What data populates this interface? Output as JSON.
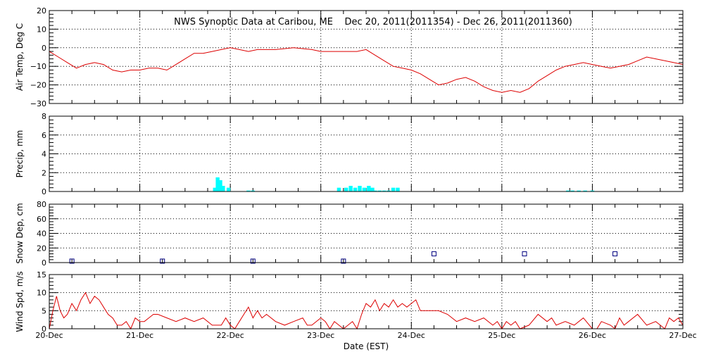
{
  "title": "NWS Synoptic Data at Caribou, ME    Dec 20, 2011(2011354) - Dec 26, 2011(2011360)",
  "xlabel": "Date (EST)",
  "x_ticks": [
    "20-Dec",
    "21-Dec",
    "22-Dec",
    "23-Dec",
    "24-Dec",
    "25-Dec",
    "26-Dec",
    "27-Dec"
  ],
  "colors": {
    "line": "#dd0000",
    "precip": "#00ffff",
    "snow": "#000080",
    "grid": "#000000"
  },
  "chart_data": [
    {
      "type": "line",
      "name": "air_temp",
      "ylabel": "Air Temp, Deg C",
      "ylim": [
        -30,
        20
      ],
      "yticks": [
        "20",
        "10",
        "0",
        "−10",
        "−20",
        "−30"
      ],
      "ytick_values": [
        20,
        10,
        0,
        -10,
        -20,
        -30
      ],
      "x_unit": "days since 20-Dec 00:00 EST",
      "x": [
        0,
        0.1,
        0.2,
        0.3,
        0.4,
        0.5,
        0.6,
        0.7,
        0.8,
        0.9,
        1.0,
        1.1,
        1.2,
        1.3,
        1.4,
        1.5,
        1.6,
        1.7,
        1.8,
        1.9,
        2.0,
        2.1,
        2.2,
        2.3,
        2.4,
        2.5,
        2.6,
        2.7,
        2.8,
        2.9,
        3.0,
        3.2,
        3.4,
        3.5,
        3.6,
        3.7,
        3.8,
        3.9,
        4.0,
        4.1,
        4.2,
        4.3,
        4.4,
        4.5,
        4.6,
        4.7,
        4.8,
        4.9,
        5.0,
        5.1,
        5.2,
        5.3,
        5.4,
        5.5,
        5.6,
        5.7,
        5.8,
        5.9,
        6.0,
        6.1,
        6.2,
        6.3,
        6.4,
        6.5,
        6.6,
        6.7,
        6.8,
        6.9,
        7.0
      ],
      "y": [
        -2,
        -5,
        -8,
        -11,
        -9,
        -8,
        -9,
        -12,
        -13,
        -12,
        -12,
        -11,
        -11,
        -12,
        -9,
        -6,
        -3,
        -3,
        -2,
        -1,
        0,
        -1,
        -2,
        -1,
        -1,
        -1,
        -0.5,
        0,
        -0.5,
        -1,
        -2,
        -2,
        -2,
        -1,
        -4,
        -7,
        -10,
        -11,
        -12,
        -14,
        -17,
        -20,
        -19,
        -17,
        -16,
        -18,
        -21,
        -23,
        -24,
        -23,
        -24,
        -22,
        -18,
        -15,
        -12,
        -10,
        -9,
        -8,
        -9,
        -10,
        -11,
        -10,
        -9,
        -7,
        -5,
        -6,
        -7,
        -8,
        -9
      ]
    },
    {
      "type": "bar",
      "name": "precip",
      "ylabel": "Precip, mm",
      "ylim": [
        0,
        8
      ],
      "yticks": [
        "8",
        "6",
        "4",
        "2",
        "0"
      ],
      "ytick_values": [
        8,
        6,
        4,
        2,
        0
      ],
      "x_unit": "days since 20-Dec 00:00 EST",
      "bar_width": 0.042,
      "x": [
        1.83,
        1.86,
        1.89,
        1.92,
        1.98,
        2.2,
        2.25,
        3.2,
        3.28,
        3.33,
        3.38,
        3.43,
        3.48,
        3.53,
        3.57,
        3.6,
        3.65,
        3.7,
        3.75,
        3.8,
        3.85,
        5.73,
        5.78,
        5.85,
        5.92,
        6.0
      ],
      "values": [
        0.4,
        1.5,
        1.2,
        0.6,
        0.4,
        0.1,
        0.1,
        0.4,
        0.4,
        0.6,
        0.4,
        0.6,
        0.4,
        0.6,
        0.4,
        0.1,
        0.1,
        0.1,
        0.1,
        0.4,
        0.4,
        0.1,
        0.1,
        0.1,
        0.1,
        0.1
      ]
    },
    {
      "type": "scatter",
      "name": "snow_depth",
      "ylabel": "Snow Dep, cm",
      "ylim": [
        0,
        80
      ],
      "yticks": [
        "80",
        "60",
        "40",
        "20",
        "0"
      ],
      "ytick_values": [
        80,
        60,
        40,
        20,
        0
      ],
      "x_unit": "days since 20-Dec 00:00 EST",
      "x": [
        0.25,
        1.25,
        2.25,
        3.25,
        4.25,
        5.25,
        6.25
      ],
      "y": [
        2,
        2,
        2,
        2,
        12,
        12,
        12
      ]
    },
    {
      "type": "line",
      "name": "wind_speed",
      "ylabel": "Wind Spd, m/s",
      "ylim": [
        0,
        15
      ],
      "yticks": [
        "15",
        "10",
        "5",
        "0"
      ],
      "ytick_values": [
        15,
        10,
        5,
        0
      ],
      "x_unit": "days since 20-Dec 00:00 EST",
      "x": [
        0,
        0.04,
        0.08,
        0.12,
        0.16,
        0.2,
        0.25,
        0.3,
        0.35,
        0.4,
        0.45,
        0.5,
        0.55,
        0.6,
        0.65,
        0.7,
        0.75,
        0.8,
        0.85,
        0.9,
        0.95,
        1.0,
        1.05,
        1.1,
        1.15,
        1.2,
        1.3,
        1.4,
        1.5,
        1.6,
        1.7,
        1.8,
        1.9,
        1.95,
        2.0,
        2.05,
        2.1,
        2.15,
        2.2,
        2.25,
        2.3,
        2.35,
        2.4,
        2.5,
        2.6,
        2.7,
        2.8,
        2.85,
        2.9,
        3.0,
        3.05,
        3.1,
        3.15,
        3.2,
        3.25,
        3.3,
        3.35,
        3.4,
        3.45,
        3.5,
        3.55,
        3.6,
        3.65,
        3.7,
        3.75,
        3.8,
        3.85,
        3.9,
        3.95,
        4.0,
        4.05,
        4.1,
        4.2,
        4.3,
        4.4,
        4.5,
        4.6,
        4.7,
        4.8,
        4.9,
        4.95,
        5.0,
        5.05,
        5.1,
        5.15,
        5.2,
        5.3,
        5.4,
        5.5,
        5.55,
        5.6,
        5.7,
        5.8,
        5.9,
        6.0,
        6.05,
        6.1,
        6.2,
        6.25,
        6.3,
        6.35,
        6.4,
        6.5,
        6.6,
        6.7,
        6.8,
        6.85,
        6.9,
        6.95,
        7.0
      ],
      "y": [
        0,
        5,
        9,
        5,
        3,
        4,
        7,
        5,
        8,
        10,
        7,
        9,
        8,
        6,
        4,
        3,
        1,
        1,
        2,
        0,
        3,
        2,
        2,
        3,
        4,
        4,
        3,
        2,
        3,
        2,
        3,
        1,
        1,
        3,
        1,
        0,
        2,
        4,
        6,
        3,
        5,
        3,
        4,
        2,
        1,
        2,
        3,
        1,
        1,
        3,
        2,
        0,
        2,
        1,
        0,
        1,
        2,
        0,
        4,
        7,
        6,
        8,
        5,
        7,
        6,
        8,
        6,
        7,
        6,
        7,
        8,
        5,
        5,
        5,
        4,
        2,
        3,
        2,
        3,
        1,
        2,
        0,
        2,
        1,
        2,
        0,
        1,
        4,
        2,
        3,
        1,
        2,
        1,
        3,
        0,
        0,
        2,
        1,
        0,
        3,
        1,
        2,
        4,
        1,
        2,
        0,
        3,
        2,
        3,
        1
      ]
    }
  ]
}
